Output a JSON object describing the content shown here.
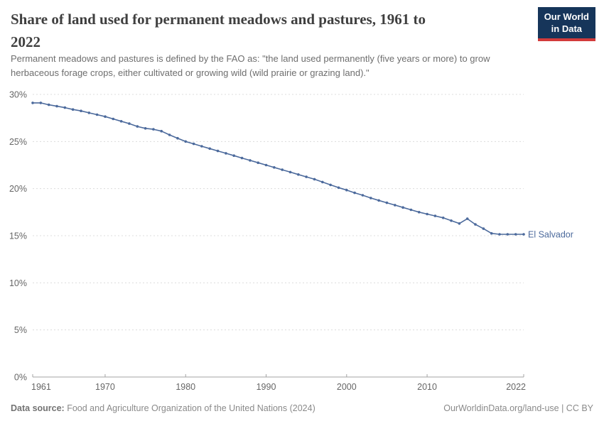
{
  "header": {
    "title_line1": "Share of land used for permanent meadows and pastures, 1961 to",
    "title_line2": "2022",
    "subtitle_line1": "Permanent meadows and pastures is defined by the FAO as: \"the land used permanently (five years or more) to grow",
    "subtitle_line2": "herbaceous forage crops, either cultivated or growing wild (wild prairie or grazing land).\"",
    "logo_line1": "Our World",
    "logo_line2": "in Data"
  },
  "chart_data": {
    "type": "line",
    "title": "Share of land used for permanent meadows and pastures, 1961 to 2022",
    "entity_label": "El Salvador",
    "unit": "%",
    "grid": true,
    "legend_position": "end-of-line",
    "xlim": [
      1961,
      2022
    ],
    "ylim": [
      0,
      30
    ],
    "x_ticks": [
      {
        "value": 1961,
        "label": "1961"
      },
      {
        "value": 1970,
        "label": "1970"
      },
      {
        "value": 1980,
        "label": "1980"
      },
      {
        "value": 1990,
        "label": "1990"
      },
      {
        "value": 2000,
        "label": "2000"
      },
      {
        "value": 2010,
        "label": "2010"
      },
      {
        "value": 2022,
        "label": "2022"
      }
    ],
    "y_ticks": [
      {
        "value": 0,
        "label": "0%"
      },
      {
        "value": 5,
        "label": "5%"
      },
      {
        "value": 10,
        "label": "10%"
      },
      {
        "value": 15,
        "label": "15%"
      },
      {
        "value": 20,
        "label": "20%"
      },
      {
        "value": 25,
        "label": "25%"
      },
      {
        "value": 30,
        "label": "30%"
      }
    ],
    "x": [
      1961,
      1962,
      1963,
      1964,
      1965,
      1966,
      1967,
      1968,
      1969,
      1970,
      1971,
      1972,
      1973,
      1974,
      1975,
      1976,
      1977,
      1978,
      1979,
      1980,
      1981,
      1982,
      1983,
      1984,
      1985,
      1986,
      1987,
      1988,
      1989,
      1990,
      1991,
      1992,
      1993,
      1994,
      1995,
      1996,
      1997,
      1998,
      1999,
      2000,
      2001,
      2002,
      2003,
      2004,
      2005,
      2006,
      2007,
      2008,
      2009,
      2010,
      2011,
      2012,
      2013,
      2014,
      2015,
      2016,
      2017,
      2018,
      2019,
      2020,
      2021,
      2022
    ],
    "series": [
      {
        "name": "El Salvador",
        "values": [
          29.1,
          29.1,
          28.9,
          28.75,
          28.6,
          28.4,
          28.25,
          28.05,
          27.85,
          27.65,
          27.4,
          27.15,
          26.9,
          26.6,
          26.4,
          26.3,
          26.1,
          25.7,
          25.35,
          25.0,
          24.75,
          24.5,
          24.25,
          24.0,
          23.75,
          23.5,
          23.25,
          23.0,
          22.75,
          22.5,
          22.25,
          22.0,
          21.75,
          21.5,
          21.25,
          21.0,
          20.7,
          20.4,
          20.1,
          19.85,
          19.55,
          19.3,
          19.0,
          18.75,
          18.5,
          18.25,
          18.0,
          17.75,
          17.5,
          17.3,
          17.1,
          16.9,
          16.6,
          16.3,
          16.8,
          16.2,
          15.75,
          15.25,
          15.15,
          15.15,
          15.15,
          15.15
        ]
      }
    ],
    "colors": {
      "line": "#4C6A9C",
      "grid": "#dcdcdc",
      "axis": "#a3a3a3",
      "tick_text": "#666666"
    }
  },
  "footer": {
    "source_label": "Data source:",
    "source_text": "Food and Agriculture Organization of the United Nations (2024)",
    "right_text": "OurWorldinData.org/land-use | CC BY"
  }
}
